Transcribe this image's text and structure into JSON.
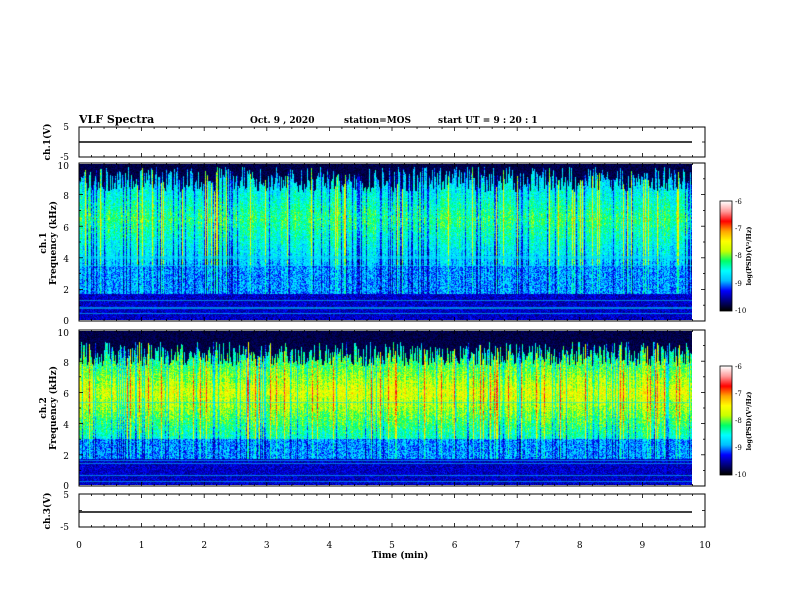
{
  "header": {
    "title": "VLF Spectra",
    "date": "Oct. 9  , 2020",
    "station": "station=MOS",
    "start": "start  UT  =   9  : 20 : 1"
  },
  "colors": {
    "palette": [
      "#000000",
      "#000080",
      "#0000ff",
      "#00bfff",
      "#00ffff",
      "#00ff66",
      "#c8ff00",
      "#ffff00",
      "#ffa500",
      "#ff0000",
      "#ff9a9a",
      "#ffffff"
    ],
    "trace": "#000000",
    "frame": "#000000"
  },
  "chart_data": [
    {
      "type": "line",
      "panel": "ch.1 voltage",
      "ylabel": "ch.1(V)",
      "ylim": [
        -5,
        5
      ],
      "yticks": [
        "5",
        "-5"
      ],
      "xlim": [
        0,
        10
      ],
      "series": [
        {
          "x": [
            0,
            9.85
          ],
          "y": [
            0,
            0
          ]
        }
      ]
    },
    {
      "type": "heatmap",
      "panel": "ch.1 spectrogram",
      "ylabel": [
        "ch.1",
        "Frequency (kHz)"
      ],
      "ylim": [
        0,
        10
      ],
      "yticks": [
        "0",
        "2",
        "4",
        "6",
        "8",
        "10"
      ],
      "xlim": [
        0,
        9.85
      ],
      "data_end_min": 9.85,
      "hiss_band_khz": [
        3.5,
        9.5
      ],
      "dominant_level_log_psd": -8.2,
      "colorbar": {
        "label": "log(PSD)(V²/Hz)",
        "range": [
          -10,
          -6
        ],
        "ticks": [
          "-6",
          "-7",
          "-8",
          "-9",
          "-10"
        ]
      }
    },
    {
      "type": "heatmap",
      "panel": "ch.2 spectrogram",
      "ylabel": [
        "ch.2",
        "Frequency (kHz)"
      ],
      "ylim": [
        0,
        10
      ],
      "yticks": [
        "0",
        "2",
        "4",
        "6",
        "8",
        "10"
      ],
      "xlim": [
        0,
        9.85
      ],
      "data_end_min": 9.85,
      "hiss_band_khz": [
        3.0,
        9.0
      ],
      "dominant_level_log_psd": -7.6,
      "colorbar": {
        "label": "log(PSD)(V²/Hz)",
        "range": [
          -10,
          -6
        ],
        "ticks": [
          "-6",
          "-7",
          "-8",
          "-9",
          "-10"
        ]
      }
    },
    {
      "type": "line",
      "panel": "ch.3 voltage",
      "ylabel": "ch.3(V)",
      "ylim": [
        -5,
        5
      ],
      "yticks": [
        "5",
        "-5"
      ],
      "xlim": [
        0,
        10
      ],
      "series": [
        {
          "x": [
            0,
            9.85
          ],
          "y": [
            0,
            0
          ]
        }
      ]
    }
  ],
  "x_axis": {
    "label": "Time (min)",
    "range": [
      0,
      10
    ],
    "ticks": [
      "0",
      "1",
      "2",
      "3",
      "4",
      "5",
      "6",
      "7",
      "8",
      "9",
      "10"
    ]
  }
}
